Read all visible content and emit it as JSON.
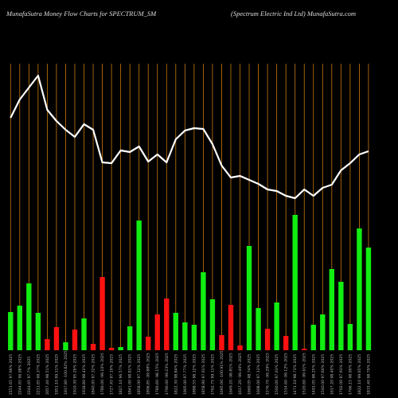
{
  "chart_data": {
    "type": "bar",
    "title": "MunafaSutra  Money Flow  Charts for SPECTRUM_SM",
    "subtitle": "(Spectrum Electric Ind Ltd) MunafaSutra.com",
    "categories": [
      "2151.65 97.96% 2025",
      "2244.65 96.98% 2025",
      "2244.65 97.7% 2025",
      "2211.65 96.37% 2025",
      "2057.40 98.51% 2025",
      "1951.10 99.11% 2025",
      "1917.80 -100.82% 2025",
      "1919.30 95.26% 2025",
      "1918.80 98.42% 2025",
      "1840.95 97.32% 2025",
      "1780.00 -99.10% 2025",
      "1727.45 97.19% 2025",
      "1827.10 96.57% 2025",
      "1841.00 98.81% 2025",
      "1858.00 97.12% 2025",
      "1806.85 -99.88% 2025",
      "1780.60 -98.15% 2025",
      "1790.00 -99.23% 2025",
      "1822.30 98.84% 2025",
      "1905.00 97.77% 2025",
      "1888.55 98.12% 2025",
      "1858.90 97.01% 2025",
      "1762.75 99.11% 2025",
      "1695.00 -100.91% 2025",
      "1649.20 -98.81% 2025",
      "1617.20 -99.40% 2025",
      "1660.05 98.74% 2025",
      "1608.00 97.13% 2025",
      "1576.70 -99.29% 2025",
      "1560.00 97.03% 2025",
      "1514.60 -99.12% 2025",
      "1471.10 98.73% 2025",
      "1520.60 -99.61% 2025",
      "1491.05 98.25% 2025",
      "1540.00 97.60% 2025",
      "1617.20 98.40% 2025",
      "1702.00 97.93% 2025",
      "1766.15 98.90% 2025",
      "1822.10 99.65% 2025",
      "1833.40 98.79% 2025"
    ],
    "values": [
      48,
      56,
      84,
      47,
      14,
      29,
      10,
      26,
      40,
      8,
      92,
      3,
      4,
      30,
      163,
      17,
      45,
      65,
      47,
      35,
      32,
      98,
      64,
      19,
      57,
      6,
      131,
      53,
      27,
      60,
      18,
      170,
      2,
      32,
      45,
      102,
      86,
      33,
      153,
      129
    ],
    "colors": [
      "#11ee11",
      "#11ee11",
      "#11ee11",
      "#11ee11",
      "#ff1111",
      "#ff1111",
      "#11ee11",
      "#ff1111",
      "#11ee11",
      "#ff1111",
      "#ff1111",
      "#ff1111",
      "#11ee11",
      "#11ee11",
      "#11ee11",
      "#ff1111",
      "#ff1111",
      "#ff1111",
      "#11ee11",
      "#11ee11",
      "#11ee11",
      "#11ee11",
      "#11ee11",
      "#ff1111",
      "#ff1111",
      "#ff1111",
      "#11ee11",
      "#11ee11",
      "#ff1111",
      "#11ee11",
      "#ff1111",
      "#11ee11",
      "#ff1111",
      "#11ee11",
      "#11ee11",
      "#11ee11",
      "#11ee11",
      "#11ee11",
      "#11ee11",
      "#11ee11"
    ],
    "line_values": [
      292,
      315,
      330,
      345,
      302,
      288,
      277,
      268,
      284,
      277,
      236,
      235,
      251,
      249,
      256,
      237,
      246,
      236,
      265,
      276,
      279,
      278,
      259,
      232,
      217,
      219,
      214,
      209,
      202,
      200,
      194,
      191,
      202,
      194,
      204,
      208,
      226,
      235,
      246,
      250
    ],
    "line_color": "#ffffff",
    "grid_color": "#c87a10",
    "ylim": [
      0,
      360
    ]
  }
}
